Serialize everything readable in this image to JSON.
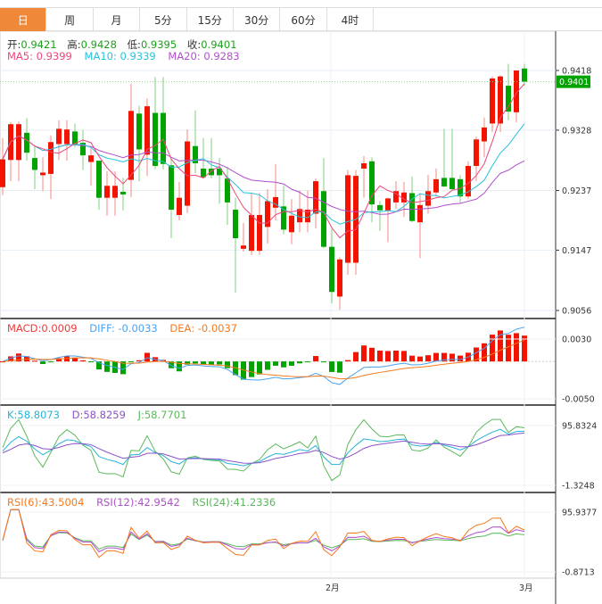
{
  "tabs": [
    "日",
    "周",
    "月",
    "5分",
    "15分",
    "30分",
    "60分",
    "4时"
  ],
  "active_tab": 0,
  "ohlc_legend": {
    "open_label": "开:",
    "open": "0.9421",
    "high_label": "高:",
    "high": "0.9428",
    "low_label": "低:",
    "low": "0.9395",
    "close_label": "收:",
    "close": "0.9401"
  },
  "ma_legend": {
    "ma5": "MA5: 0.9399",
    "ma10": "MA10: 0.9339",
    "ma20": "MA20: 0.9283"
  },
  "macd_legend": {
    "macd": "MACD:0.0009",
    "diff": "DIFF: -0.0033",
    "dea": "DEA: -0.0037"
  },
  "kdj_legend": {
    "k": "K:58.8073",
    "d": "D:58.8259",
    "j": "J:58.7701"
  },
  "rsi_legend": {
    "rsi6": "RSI(6):43.5004",
    "rsi12": "RSI(12):42.9542",
    "rsi24": "RSI(24):41.2336"
  },
  "price_axis": [
    "0.9418",
    "0.9328",
    "0.9237",
    "0.9147",
    "0.9056"
  ],
  "last_price": "0.9401",
  "macd_axis": [
    "0.0030",
    "-0.0050"
  ],
  "kdj_axis": [
    "95.8324",
    "-1.3248"
  ],
  "rsi_axis": [
    "95.9377",
    "-0.8713"
  ],
  "x_axis": [
    {
      "label": "2月",
      "index": 41
    },
    {
      "label": "3月",
      "index": 65
    }
  ],
  "colors": {
    "up": "#f21300",
    "down": "#00a300",
    "ma5": "#f0467a",
    "ma10": "#27c3dc",
    "ma20": "#b04fcc",
    "diff": "#4aa3f0",
    "dea": "#f57a1c",
    "tab_active": "#f0883a"
  },
  "chart_data": {
    "type": "candlestick",
    "ohlc": [
      [
        0.9242,
        0.9316,
        0.923,
        0.9284
      ],
      [
        0.9283,
        0.934,
        0.9251,
        0.9337
      ],
      [
        0.9283,
        0.9341,
        0.9251,
        0.9337
      ],
      [
        0.9324,
        0.9346,
        0.9282,
        0.9294
      ],
      [
        0.9286,
        0.9304,
        0.9239,
        0.9268
      ],
      [
        0.926,
        0.9287,
        0.9236,
        0.9264
      ],
      [
        0.9262,
        0.932,
        0.9224,
        0.931
      ],
      [
        0.9307,
        0.9343,
        0.9283,
        0.933
      ],
      [
        0.9307,
        0.9343,
        0.9282,
        0.9329
      ],
      [
        0.9326,
        0.9338,
        0.9302,
        0.9307
      ],
      [
        0.9309,
        0.9328,
        0.9268,
        0.929
      ],
      [
        0.928,
        0.93,
        0.9244,
        0.929
      ],
      [
        0.9282,
        0.9282,
        0.9208,
        0.9226
      ],
      [
        0.9226,
        0.9266,
        0.9199,
        0.9244
      ],
      [
        0.9226,
        0.9266,
        0.9199,
        0.9244
      ],
      [
        0.9235,
        0.9256,
        0.9207,
        0.9231
      ],
      [
        0.9253,
        0.9398,
        0.9227,
        0.9357
      ],
      [
        0.9353,
        0.9365,
        0.9251,
        0.9299
      ],
      [
        0.9291,
        0.9376,
        0.9259,
        0.9364
      ],
      [
        0.9354,
        0.9408,
        0.9269,
        0.9274
      ],
      [
        0.9354,
        0.9408,
        0.9269,
        0.9277
      ],
      [
        0.9275,
        0.9286,
        0.9165,
        0.9208
      ],
      [
        0.92,
        0.925,
        0.9192,
        0.9226
      ],
      [
        0.9214,
        0.9329,
        0.9203,
        0.9311
      ],
      [
        0.9304,
        0.9358,
        0.9263,
        0.9278
      ],
      [
        0.927,
        0.9316,
        0.9255,
        0.9257
      ],
      [
        0.927,
        0.9316,
        0.9255,
        0.926
      ],
      [
        0.927,
        0.9286,
        0.9217,
        0.926
      ],
      [
        0.9255,
        0.9273,
        0.9185,
        0.9219
      ],
      [
        0.9208,
        0.9226,
        0.9083,
        0.9165
      ],
      [
        0.9149,
        0.9188,
        0.9145,
        0.9154
      ],
      [
        0.9146,
        0.9233,
        0.914,
        0.92
      ],
      [
        0.9146,
        0.9233,
        0.914,
        0.92
      ],
      [
        0.9182,
        0.9239,
        0.9157,
        0.9221
      ],
      [
        0.9211,
        0.9277,
        0.9192,
        0.9227
      ],
      [
        0.9213,
        0.9244,
        0.9171,
        0.9178
      ],
      [
        0.9174,
        0.9224,
        0.9156,
        0.9199
      ],
      [
        0.9189,
        0.9237,
        0.9174,
        0.9209
      ],
      [
        0.9189,
        0.9237,
        0.9174,
        0.9208
      ],
      [
        0.9202,
        0.9255,
        0.918,
        0.9251
      ],
      [
        0.9236,
        0.9286,
        0.915,
        0.9152
      ],
      [
        0.9152,
        0.9179,
        0.9067,
        0.9084
      ],
      [
        0.9077,
        0.9136,
        0.9057,
        0.9133
      ],
      [
        0.9128,
        0.9268,
        0.911,
        0.926
      ],
      [
        0.9128,
        0.9268,
        0.911,
        0.9259
      ],
      [
        0.927,
        0.9289,
        0.9226,
        0.9278
      ],
      [
        0.9281,
        0.9287,
        0.9189,
        0.9216
      ],
      [
        0.9215,
        0.9221,
        0.9176,
        0.9207
      ],
      [
        0.9207,
        0.9226,
        0.9159,
        0.9225
      ],
      [
        0.9219,
        0.9251,
        0.9209,
        0.9236
      ],
      [
        0.9219,
        0.925,
        0.9197,
        0.9234
      ],
      [
        0.9233,
        0.9258,
        0.9189,
        0.9191
      ],
      [
        0.9189,
        0.9233,
        0.9135,
        0.9215
      ],
      [
        0.9214,
        0.926,
        0.9202,
        0.9236
      ],
      [
        0.9234,
        0.927,
        0.9228,
        0.9254
      ],
      [
        0.9256,
        0.933,
        0.9242,
        0.9243
      ],
      [
        0.9256,
        0.933,
        0.9237,
        0.9239
      ],
      [
        0.9254,
        0.926,
        0.9218,
        0.9228
      ],
      [
        0.9228,
        0.9281,
        0.9224,
        0.9274
      ],
      [
        0.9274,
        0.9318,
        0.9251,
        0.9314
      ],
      [
        0.9311,
        0.9347,
        0.9287,
        0.9332
      ],
      [
        0.9338,
        0.9409,
        0.9325,
        0.9406
      ],
      [
        0.9338,
        0.9411,
        0.9325,
        0.9409
      ],
      [
        0.9395,
        0.9428,
        0.9343,
        0.9356
      ],
      [
        0.9355,
        0.9418,
        0.934,
        0.9418
      ],
      [
        0.9421,
        0.9428,
        0.9395,
        0.9401
      ]
    ],
    "ohlc_order": "open,high,low,close",
    "price_range": [
      0.9056,
      0.9418
    ],
    "macd_range": [
      -0.005,
      0.003
    ],
    "kdj_range": [
      -1.3248,
      95.8324
    ],
    "rsi_range": [
      -0.8713,
      95.9377
    ]
  }
}
